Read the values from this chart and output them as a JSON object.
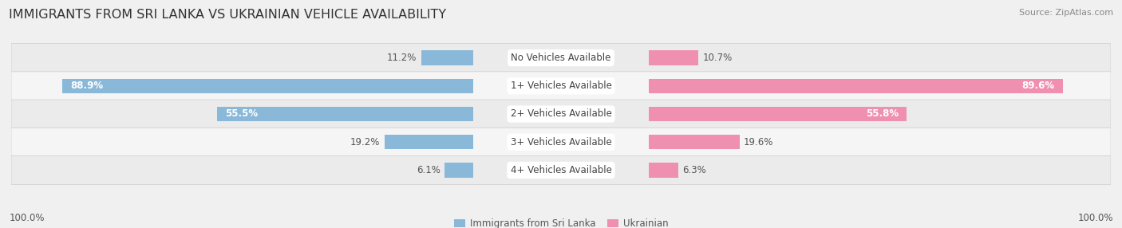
{
  "title": "IMMIGRANTS FROM SRI LANKA VS UKRAINIAN VEHICLE AVAILABILITY",
  "source": "Source: ZipAtlas.com",
  "categories": [
    "No Vehicles Available",
    "1+ Vehicles Available",
    "2+ Vehicles Available",
    "3+ Vehicles Available",
    "4+ Vehicles Available"
  ],
  "sri_lanka_values": [
    11.2,
    88.9,
    55.5,
    19.2,
    6.1
  ],
  "ukrainian_values": [
    10.7,
    89.6,
    55.8,
    19.6,
    6.3
  ],
  "sri_lanka_color": "#89b8d8",
  "ukrainian_color": "#f090b0",
  "sri_lanka_color_light": "#aaccee",
  "ukrainian_color_light": "#f8c0d0",
  "row_bg_even": "#ebebeb",
  "row_bg_odd": "#f5f5f5",
  "background_color": "#f0f0f0",
  "title_fontsize": 11.5,
  "label_fontsize": 8.5,
  "category_fontsize": 8.5,
  "footer_fontsize": 8.5,
  "source_fontsize": 8.0,
  "value_label_color": "#555555",
  "category_label_color": "#444444",
  "footer_color": "#555555",
  "title_color": "#333333",
  "source_color": "#888888"
}
